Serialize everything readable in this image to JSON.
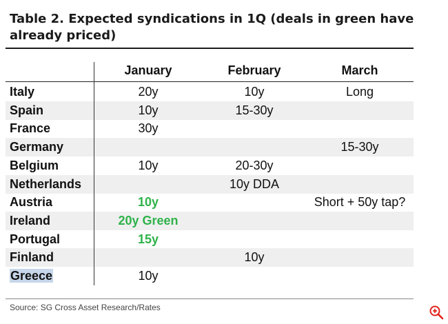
{
  "title": "Table 2. Expected syndications in 1Q (deals in green have already priced)",
  "columns": [
    "January",
    "February",
    "March"
  ],
  "rows": [
    {
      "country": "Italy",
      "jan": "20y",
      "feb": "10y",
      "mar": "Long",
      "jan_green": false
    },
    {
      "country": "Spain",
      "jan": "10y",
      "feb": "15-30y",
      "mar": "",
      "jan_green": false
    },
    {
      "country": "France",
      "jan": "30y",
      "feb": "",
      "mar": "",
      "jan_green": false
    },
    {
      "country": "Germany",
      "jan": "",
      "feb": "",
      "mar": "15-30y",
      "jan_green": false
    },
    {
      "country": "Belgium",
      "jan": "10y",
      "feb": "20-30y",
      "mar": "",
      "jan_green": false
    },
    {
      "country": "Netherlands",
      "jan": "",
      "feb": "10y DDA",
      "mar": "",
      "jan_green": false
    },
    {
      "country": "Austria",
      "jan": "10y",
      "feb": "",
      "mar": "Short + 50y tap?",
      "jan_green": true
    },
    {
      "country": "Ireland",
      "jan": "20y Green",
      "feb": "",
      "mar": "",
      "jan_green": true
    },
    {
      "country": "Portugal",
      "jan": "15y",
      "feb": "",
      "mar": "",
      "jan_green": true
    },
    {
      "country": "Finland",
      "jan": "",
      "feb": "10y",
      "mar": "",
      "jan_green": false
    },
    {
      "country": "Greece",
      "jan": "10y",
      "feb": "",
      "mar": "",
      "jan_green": false
    }
  ],
  "highlighted_country": "Greece",
  "green_color": "#2fb24a",
  "source": "Source: SG Cross Asset Research/Rates",
  "icons": {
    "zoom": "zoom-in-icon"
  }
}
